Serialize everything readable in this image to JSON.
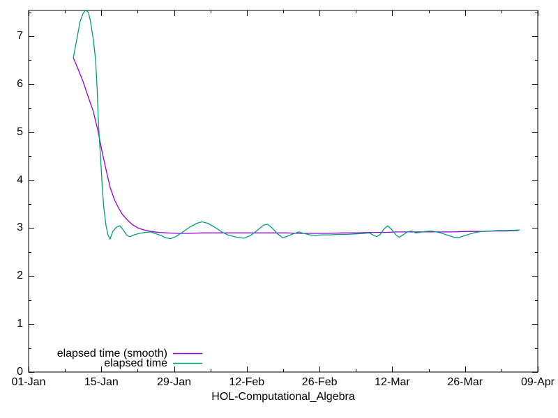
{
  "window": {
    "background": "#ffffff",
    "foreground": "#000000"
  },
  "chart_data": {
    "type": "line",
    "title": "",
    "xlabel": "HOL-Computational_Algebra",
    "ylabel": "",
    "grid": false,
    "x_axis": {
      "unit": "date",
      "day_min": 0,
      "day_max": 98,
      "major_ticks": [
        {
          "day": 0,
          "label": "01-Jan"
        },
        {
          "day": 14,
          "label": "15-Jan"
        },
        {
          "day": 28,
          "label": "29-Jan"
        },
        {
          "day": 42,
          "label": "12-Feb"
        },
        {
          "day": 56,
          "label": "26-Feb"
        },
        {
          "day": 70,
          "label": "12-Mar"
        },
        {
          "day": 84,
          "label": "26-Mar"
        },
        {
          "day": 98,
          "label": "09-Apr"
        }
      ],
      "minor_tick_days": [
        7,
        21,
        35,
        49,
        63,
        77,
        91
      ]
    },
    "y_axis": {
      "min": 0,
      "max": 7.54,
      "major_ticks": [
        {
          "value": 0,
          "label": "0"
        },
        {
          "value": 1,
          "label": "1"
        },
        {
          "value": 2,
          "label": "2"
        },
        {
          "value": 3,
          "label": "3"
        },
        {
          "value": 4,
          "label": "4"
        },
        {
          "value": 5,
          "label": "5"
        },
        {
          "value": 6,
          "label": "6"
        },
        {
          "value": 7,
          "label": "7"
        }
      ],
      "minor_step": 0.5
    },
    "legend": {
      "position": "bottom-left-inside",
      "entries": [
        {
          "label": "elapsed time (smooth)",
          "color": "#9400d3"
        },
        {
          "label": "elapsed time",
          "color": "#009e73"
        }
      ]
    },
    "series": [
      {
        "name": "elapsed time (smooth)",
        "color": "#9400d3",
        "points": [
          [
            8.6,
            6.55
          ],
          [
            9.5,
            6.32
          ],
          [
            10.5,
            6.05
          ],
          [
            11.4,
            5.76
          ],
          [
            12.4,
            5.45
          ],
          [
            13.3,
            5.05
          ],
          [
            14.1,
            4.62
          ],
          [
            14.9,
            4.22
          ],
          [
            15.7,
            3.85
          ],
          [
            16.5,
            3.6
          ],
          [
            17.3,
            3.42
          ],
          [
            18.1,
            3.28
          ],
          [
            19.1,
            3.16
          ],
          [
            20.0,
            3.07
          ],
          [
            21.1,
            3.0
          ],
          [
            22.3,
            2.96
          ],
          [
            23.6,
            2.93
          ],
          [
            25.1,
            2.91
          ],
          [
            26.7,
            2.9
          ],
          [
            28.7,
            2.89
          ],
          [
            30.7,
            2.89
          ],
          [
            33.4,
            2.9
          ],
          [
            36.1,
            2.9
          ],
          [
            38.8,
            2.9
          ],
          [
            41.5,
            2.9
          ],
          [
            44.2,
            2.9
          ],
          [
            46.9,
            2.9
          ],
          [
            49.5,
            2.9
          ],
          [
            52.2,
            2.89
          ],
          [
            54.9,
            2.89
          ],
          [
            57.6,
            2.89
          ],
          [
            60.3,
            2.9
          ],
          [
            63.0,
            2.9
          ],
          [
            65.6,
            2.91
          ],
          [
            68.3,
            2.91
          ],
          [
            71.0,
            2.92
          ],
          [
            73.7,
            2.92
          ],
          [
            76.4,
            2.92
          ],
          [
            79.1,
            2.92
          ],
          [
            81.8,
            2.92
          ],
          [
            84.4,
            2.93
          ],
          [
            87.1,
            2.93
          ],
          [
            89.8,
            2.94
          ],
          [
            91.8,
            2.94
          ],
          [
            94.3,
            2.95
          ]
        ]
      },
      {
        "name": "elapsed time",
        "color": "#009e73",
        "points": [
          [
            8.6,
            6.55
          ],
          [
            9.3,
            6.95
          ],
          [
            9.9,
            7.3
          ],
          [
            10.5,
            7.48
          ],
          [
            11.0,
            7.54
          ],
          [
            11.5,
            7.5
          ],
          [
            11.9,
            7.32
          ],
          [
            12.5,
            6.9
          ],
          [
            12.9,
            6.5
          ],
          [
            13.2,
            5.9
          ],
          [
            13.4,
            5.3
          ],
          [
            13.7,
            4.7
          ],
          [
            14.0,
            4.2
          ],
          [
            14.2,
            3.8
          ],
          [
            14.5,
            3.4
          ],
          [
            14.9,
            3.05
          ],
          [
            15.3,
            2.85
          ],
          [
            15.7,
            2.77
          ],
          [
            16.2,
            2.93
          ],
          [
            16.9,
            3.02
          ],
          [
            17.6,
            3.05
          ],
          [
            18.3,
            2.95
          ],
          [
            18.9,
            2.85
          ],
          [
            19.5,
            2.82
          ],
          [
            20.3,
            2.86
          ],
          [
            21.3,
            2.89
          ],
          [
            22.4,
            2.91
          ],
          [
            23.5,
            2.92
          ],
          [
            24.3,
            2.89
          ],
          [
            25.4,
            2.85
          ],
          [
            26.4,
            2.8
          ],
          [
            27.3,
            2.78
          ],
          [
            28.3,
            2.82
          ],
          [
            29.7,
            2.92
          ],
          [
            31.0,
            3.02
          ],
          [
            32.4,
            3.1
          ],
          [
            33.4,
            3.13
          ],
          [
            34.5,
            3.1
          ],
          [
            35.8,
            3.02
          ],
          [
            37.2,
            2.92
          ],
          [
            38.5,
            2.85
          ],
          [
            40.1,
            2.81
          ],
          [
            41.5,
            2.79
          ],
          [
            42.8,
            2.85
          ],
          [
            44.2,
            2.97
          ],
          [
            45.2,
            3.06
          ],
          [
            46.0,
            3.08
          ],
          [
            46.9,
            3.0
          ],
          [
            47.9,
            2.88
          ],
          [
            48.9,
            2.8
          ],
          [
            49.8,
            2.83
          ],
          [
            50.9,
            2.88
          ],
          [
            52.0,
            2.92
          ],
          [
            53.0,
            2.89
          ],
          [
            54.1,
            2.86
          ],
          [
            55.2,
            2.85
          ],
          [
            56.5,
            2.86
          ],
          [
            58.1,
            2.86
          ],
          [
            59.7,
            2.87
          ],
          [
            61.3,
            2.87
          ],
          [
            63.0,
            2.88
          ],
          [
            64.6,
            2.89
          ],
          [
            65.6,
            2.9
          ],
          [
            66.4,
            2.85
          ],
          [
            67.0,
            2.82
          ],
          [
            67.7,
            2.87
          ],
          [
            68.3,
            2.97
          ],
          [
            69.1,
            3.05
          ],
          [
            69.9,
            2.97
          ],
          [
            70.7,
            2.86
          ],
          [
            71.3,
            2.81
          ],
          [
            72.1,
            2.86
          ],
          [
            72.9,
            2.92
          ],
          [
            73.7,
            2.94
          ],
          [
            74.5,
            2.9
          ],
          [
            75.3,
            2.91
          ],
          [
            76.4,
            2.93
          ],
          [
            77.5,
            2.94
          ],
          [
            78.5,
            2.92
          ],
          [
            79.6,
            2.89
          ],
          [
            80.7,
            2.85
          ],
          [
            81.8,
            2.81
          ],
          [
            82.6,
            2.8
          ],
          [
            83.6,
            2.83
          ],
          [
            84.7,
            2.87
          ],
          [
            86.0,
            2.91
          ],
          [
            87.4,
            2.93
          ],
          [
            88.7,
            2.94
          ],
          [
            90.3,
            2.95
          ],
          [
            91.9,
            2.95
          ],
          [
            94.5,
            2.96
          ]
        ]
      }
    ]
  }
}
